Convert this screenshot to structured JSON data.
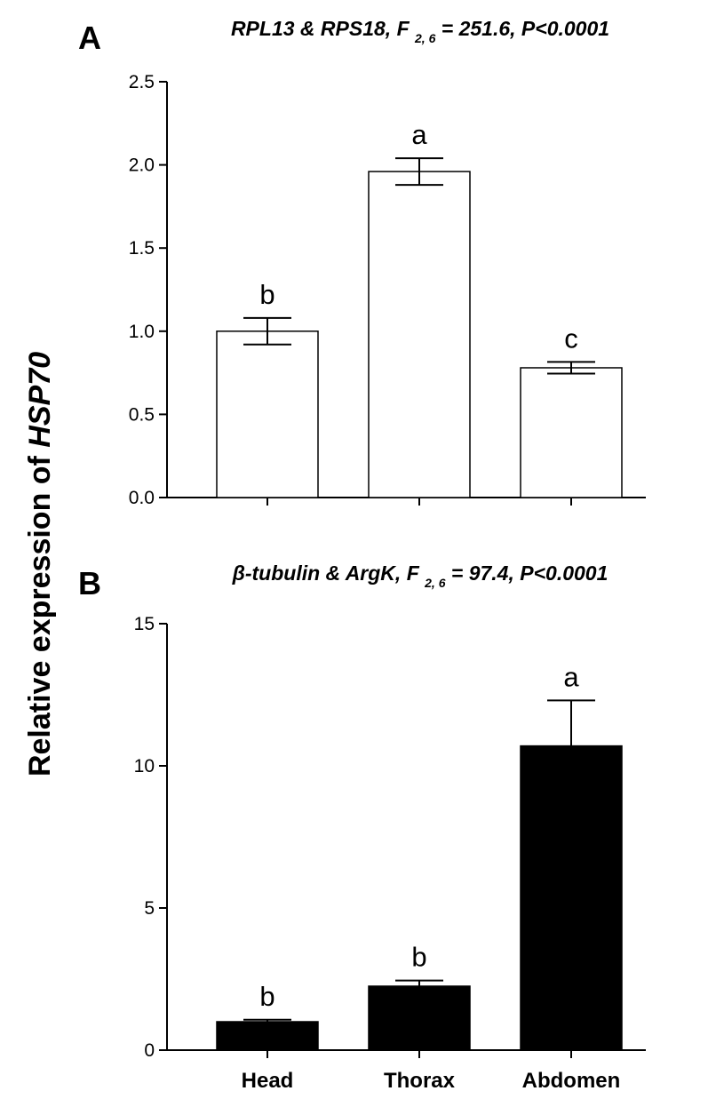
{
  "figure": {
    "ylabel_prefix": "Relative expression of ",
    "ylabel_gene": "HSP70",
    "colors": {
      "panel_a_fill": "#ffffff",
      "panel_b_fill": "#000000",
      "stroke": "#000000"
    }
  },
  "chart_data": [
    {
      "type": "bar",
      "panel": "A",
      "title_parts": [
        "RPL13 & RPS18,  F ",
        "2, 6",
        " = 251.6, P<0.0001"
      ],
      "categories": [
        "Head",
        "Thorax",
        "Abdomen"
      ],
      "values": [
        1.0,
        1.96,
        0.78
      ],
      "errors": [
        0.08,
        0.08,
        0.035
      ],
      "significance": [
        "b",
        "a",
        "c"
      ],
      "ylim": [
        0,
        2.5
      ],
      "yticks": [
        0,
        0.5,
        1.0,
        1.5,
        2.0,
        2.5
      ],
      "ytick_labels": [
        "0.0",
        "0.5",
        "1.0",
        "1.5",
        "2.0",
        "2.5"
      ],
      "show_category_labels": false,
      "grid": false
    },
    {
      "type": "bar",
      "panel": "B",
      "title_parts": [
        "β-tubulin & ArgK, F ",
        "2, 6",
        " = 97.4, P<0.0001"
      ],
      "categories": [
        "Head",
        "Thorax",
        "Abdomen"
      ],
      "values": [
        1.0,
        2.25,
        10.7
      ],
      "errors": [
        0.07,
        0.2,
        1.6
      ],
      "significance": [
        "b",
        "b",
        "a"
      ],
      "ylim": [
        0,
        15
      ],
      "yticks": [
        0,
        5,
        10,
        15
      ],
      "ytick_labels": [
        "0",
        "5",
        "10",
        "15"
      ],
      "show_category_labels": true,
      "grid": false
    }
  ]
}
